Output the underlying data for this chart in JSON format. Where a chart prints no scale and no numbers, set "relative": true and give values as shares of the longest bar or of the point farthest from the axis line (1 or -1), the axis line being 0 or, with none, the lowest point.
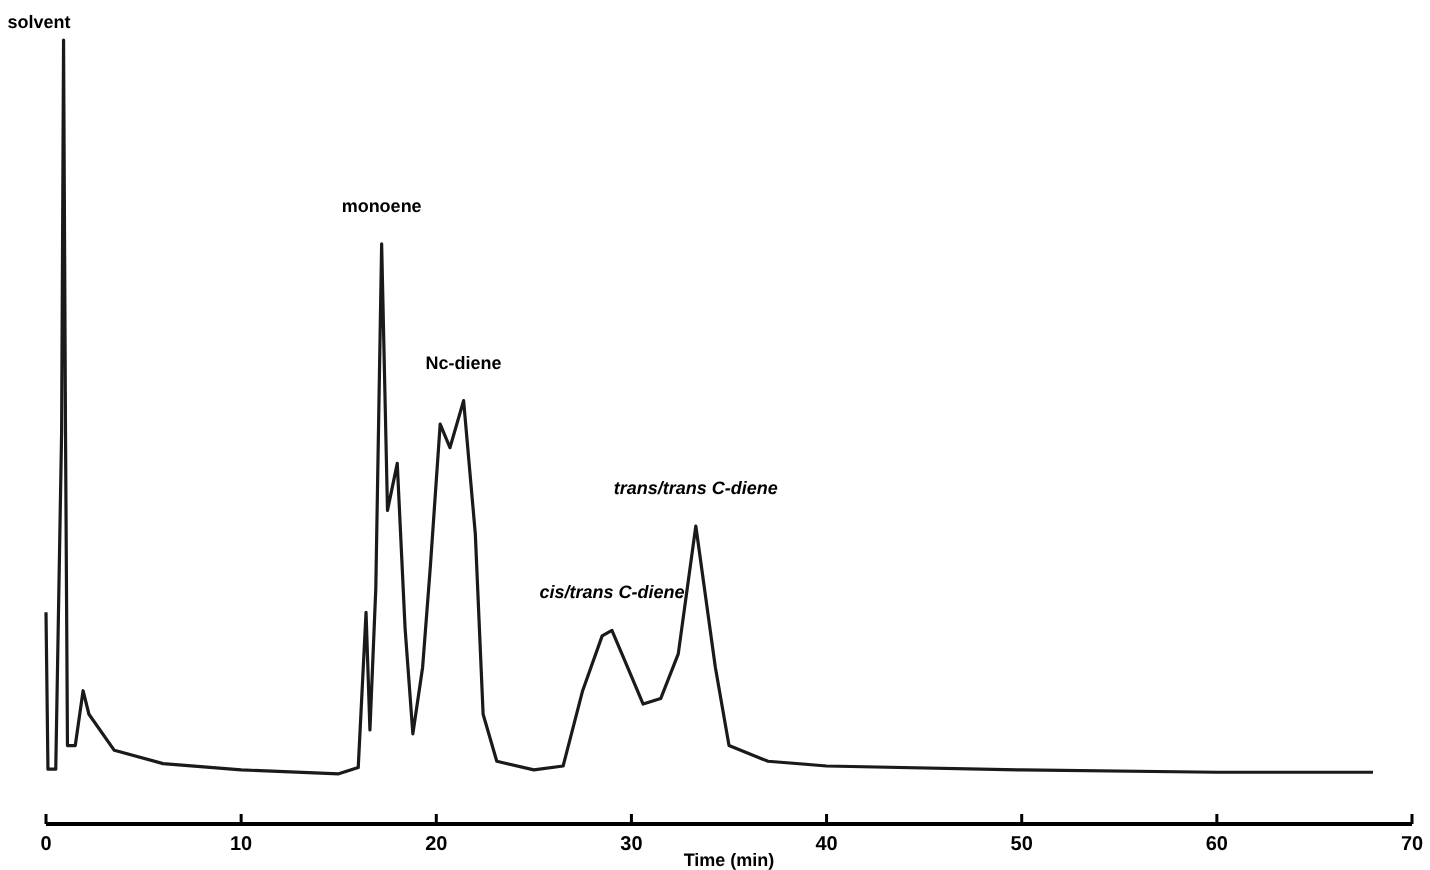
{
  "chart_data": {
    "type": "line",
    "relative": true,
    "xlabel": "Time (min)",
    "xlim": [
      0,
      70
    ],
    "xticks": [
      0,
      10,
      20,
      30,
      40,
      50,
      60,
      70
    ],
    "grid": false,
    "marker": "none",
    "line_style": "solid",
    "series": [
      {
        "color": "#1a1a1a",
        "x": [
          0,
          0.1,
          0.5,
          0.8,
          0.9,
          1.0,
          1.1,
          1.5,
          1.9,
          2.2,
          3.5,
          6,
          10,
          15,
          16,
          16.4,
          16.6,
          16.9,
          17.2,
          17.5,
          18.0,
          18.4,
          18.8,
          19.3,
          19.7,
          20.2,
          20.7,
          21.4,
          22.0,
          22.4,
          23.1,
          25,
          26.5,
          27.5,
          28.5,
          29.0,
          29.8,
          30.6,
          31.5,
          32.4,
          33.3,
          34.3,
          35.0,
          37,
          40,
          50,
          60,
          68
        ],
        "values": [
          0.27,
          0.07,
          0.07,
          0.5,
          1,
          0.5,
          0.1,
          0.1,
          0.17,
          0.14,
          0.094,
          0.077,
          0.069,
          0.064,
          0.072,
          0.27,
          0.12,
          0.3,
          0.74,
          0.4,
          0.46,
          0.25,
          0.115,
          0.2,
          0.33,
          0.51,
          0.48,
          0.54,
          0.37,
          0.14,
          0.08,
          0.069,
          0.074,
          0.17,
          0.24,
          0.247,
          0.2,
          0.153,
          0.16,
          0.217,
          0.38,
          0.2,
          0.1,
          0.08,
          0.074,
          0.069,
          0.066,
          0.066
        ]
      }
    ],
    "annotations": [
      {
        "text": "solvent",
        "x": 0.9,
        "y": 1
      },
      {
        "text": "monoene",
        "x": 17.2,
        "y": 0.74
      },
      {
        "text": "Nc-diene",
        "x": 21.4,
        "y": 0.54
      },
      {
        "text": "cis/trans C-diene",
        "x": 29.0,
        "y": 0.247
      },
      {
        "text": "trans/trans C-diene",
        "x": 33.3,
        "y": 0.38
      }
    ]
  }
}
